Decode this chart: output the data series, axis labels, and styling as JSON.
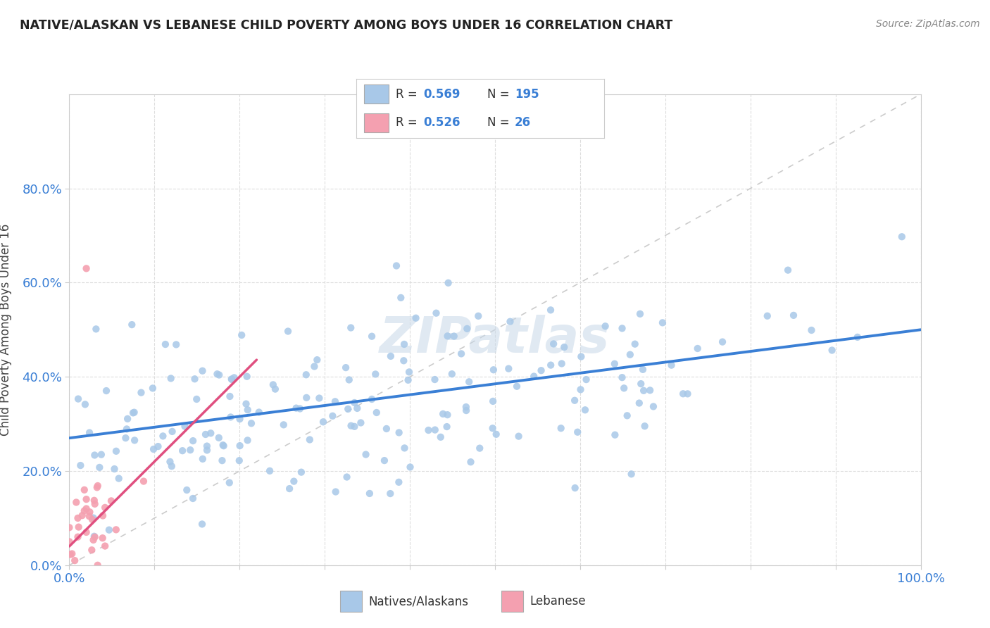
{
  "title": "NATIVE/ALASKAN VS LEBANESE CHILD POVERTY AMONG BOYS UNDER 16 CORRELATION CHART",
  "source_text": "Source: ZipAtlas.com",
  "ylabel": "Child Poverty Among Boys Under 16",
  "xlim": [
    0,
    1
  ],
  "ylim": [
    0,
    1
  ],
  "x_tick_positions": [
    0,
    0.1,
    0.2,
    0.3,
    0.4,
    0.5,
    0.6,
    0.7,
    0.8,
    0.9,
    1.0
  ],
  "y_tick_positions": [
    0.0,
    0.2,
    0.4,
    0.6,
    0.8
  ],
  "native_color": "#a8c8e8",
  "lebanese_color": "#f4a0b0",
  "native_line_color": "#3a7fd5",
  "lebanese_line_color": "#e05080",
  "diag_color": "#cccccc",
  "R_native": 0.569,
  "N_native": 195,
  "R_lebanese": 0.526,
  "N_lebanese": 26,
  "background_color": "#ffffff",
  "grid_color": "#dddddd",
  "axis_label_color": "#3a7fd5",
  "title_color": "#222222",
  "source_color": "#888888",
  "native_line_intercept": 0.27,
  "native_line_slope": 0.23,
  "lebanese_line_intercept": 0.04,
  "lebanese_line_slope": 1.8,
  "lebanese_line_xmax": 0.22
}
